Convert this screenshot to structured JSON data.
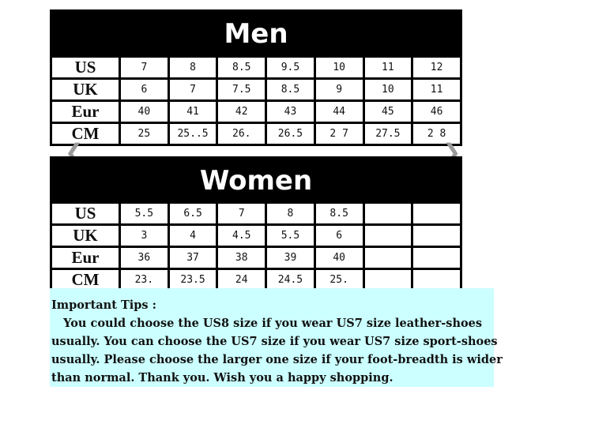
{
  "men": {
    "title": "Men",
    "rows": [
      {
        "label": "US",
        "values": [
          "7",
          "8",
          "8.5",
          "9.5",
          "10",
          "11",
          "12"
        ]
      },
      {
        "label": "UK",
        "values": [
          "6",
          "7",
          "7.5",
          "8.5",
          "9",
          "10",
          "11"
        ]
      },
      {
        "label": "Eur",
        "values": [
          "40",
          "41",
          "42",
          "43",
          "44",
          "45",
          "46"
        ]
      },
      {
        "label": "CM",
        "values": [
          "25",
          "25..5",
          "26.",
          "26.5",
          "2 7",
          "27.5",
          "2 8"
        ]
      }
    ]
  },
  "women": {
    "title": "Women",
    "rows": [
      {
        "label": "US",
        "values": [
          "5.5",
          "6.5",
          "7",
          "8",
          "8.5",
          "",
          ""
        ]
      },
      {
        "label": "UK",
        "values": [
          "3",
          "4",
          "4.5",
          "5.5",
          "6",
          "",
          ""
        ]
      },
      {
        "label": "Eur",
        "values": [
          "36",
          "37",
          "38",
          "39",
          "40",
          "",
          ""
        ]
      },
      {
        "label": "CM",
        "values": [
          "23.",
          "23.5",
          "24",
          "24.5",
          "25.",
          "",
          ""
        ]
      }
    ]
  },
  "carousel": {
    "prev_icon": "chevron-left-icon",
    "next_icon": "chevron-right-icon",
    "prev_glyph": "❮",
    "next_glyph": "❯"
  },
  "tips": {
    "lines": [
      "Important Tips :",
      "   You could choose the US8 size if you wear US7 size leather-shoes",
      "usually. You can choose the US7 size if you wear US7 size sport-shoes",
      "usually. Please choose the larger one size if your foot-breadth is wider",
      "than normal. Thank you. Wish you a happy shopping."
    ],
    "background": "#ccffff"
  }
}
